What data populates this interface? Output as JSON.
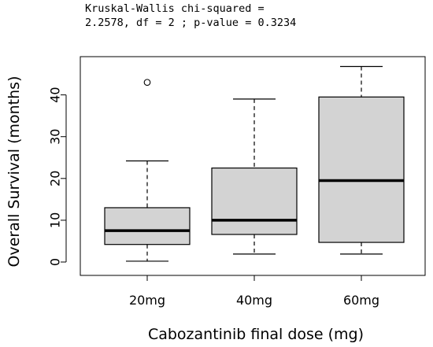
{
  "annotation": {
    "line1": "Kruskal-Wallis chi-squared =",
    "line2": "2.2578, df = 2 ; p-value = 0.3234"
  },
  "chart_data": {
    "type": "boxplot",
    "title": "",
    "xlabel": "Cabozantinib final dose (mg)",
    "ylabel": "Overall Survival (months)",
    "ylim": [
      0,
      47
    ],
    "yticks": [
      0,
      10,
      20,
      30,
      40
    ],
    "grid": false,
    "box_color": "#d3d3d3",
    "categories": [
      "20mg",
      "40mg",
      "60mg"
    ],
    "boxes": [
      {
        "category": "20mg",
        "min": 0.2,
        "q1": 4.2,
        "median": 7.5,
        "q3": 13.0,
        "max": 24.2,
        "outliers": [
          43.0
        ]
      },
      {
        "category": "40mg",
        "min": 1.9,
        "q1": 6.6,
        "median": 10.0,
        "q3": 22.5,
        "max": 39.0,
        "outliers": []
      },
      {
        "category": "60mg",
        "min": 1.9,
        "q1": 4.7,
        "median": 19.5,
        "q3": 39.5,
        "max": 46.8,
        "outliers": []
      }
    ]
  }
}
